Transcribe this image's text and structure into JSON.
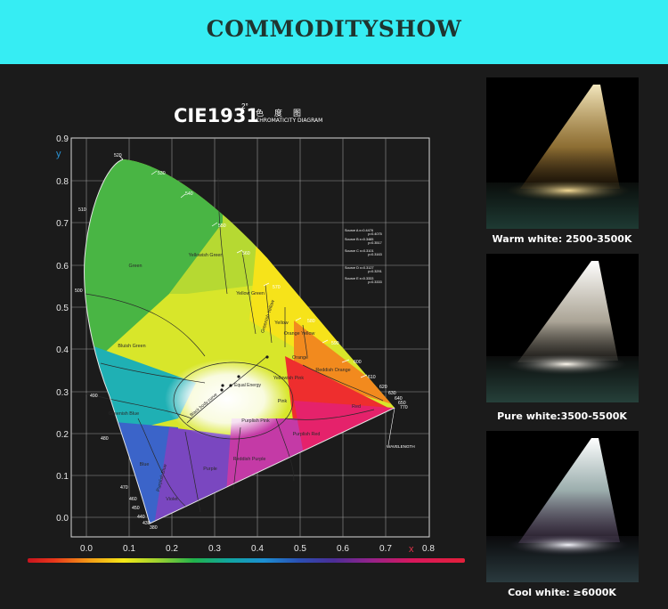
{
  "banner": {
    "title": "COMMODITYSHOW",
    "color": "#36edf3"
  },
  "diagram": {
    "title_main": "CIE1931",
    "title_sup": "2°",
    "title_cn": "色度图",
    "title_en": "CHROMATICITY DIAGRAM",
    "y_axis_label": "y",
    "x_axis_label": "x",
    "x_ticks": [
      "0.0",
      "0.1",
      "0.2",
      "0.3",
      "0.4",
      "0.5",
      "0.6",
      "0.7",
      "0.8"
    ],
    "y_ticks": [
      "0.9",
      "0.8",
      "0.7",
      "0.6",
      "0.5",
      "0.4",
      "0.3",
      "0.2",
      "0.1",
      "0.0"
    ],
    "wavelengths": [
      "520",
      "530",
      "540",
      "550",
      "560",
      "570",
      "580",
      "590",
      "600",
      "610",
      "620",
      "630",
      "640",
      "650",
      "770",
      "510",
      "500",
      "490",
      "480",
      "470",
      "460",
      "450",
      "440",
      "430",
      "380"
    ],
    "regions": [
      "Green",
      "Yellowish Green",
      "Yellow Green",
      "Greenish Yellow",
      "Yellow",
      "Orange Yellow",
      "Orange",
      "Reddish Orange",
      "Red",
      "Bluish Green",
      "Greenish Blue",
      "Blue",
      "Purplish Blue",
      "Violet",
      "Purple",
      "Reddish Purple",
      "Purplish Red",
      "Purplish Pink",
      "Pink",
      "Yellowish Pink"
    ],
    "sources": [
      "Source A x=0.4476",
      "y=0.4075",
      "Source B x=0.3485",
      "y=0.3517",
      "Source C x=0.3101",
      "y=0.3163",
      "Source D x=0.3127",
      "y=0.3291",
      "Source E x=0.3333",
      "y=0.3333"
    ],
    "black_body_label": "Black body curve",
    "equal_energy_label": "Equal Energy",
    "wavelength_label": "WAVELENGTH"
  },
  "panels": [
    {
      "caption": "Warm white: 2500-3500K",
      "tint": "#f2d38a"
    },
    {
      "caption": "Pure white:3500-5500K",
      "tint": "#fbf1dd"
    },
    {
      "caption": "Cool white: ≥6000K",
      "tint": "#e8e4f4"
    }
  ]
}
